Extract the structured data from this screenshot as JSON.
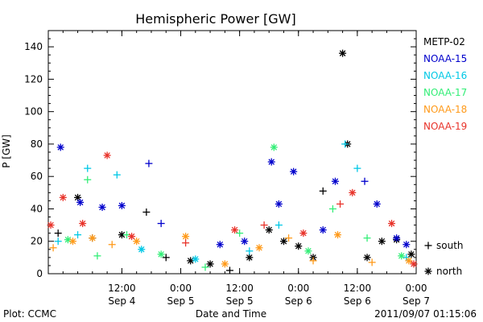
{
  "chart_data": {
    "type": "scatter",
    "title": "Hemispheric Power [GW]",
    "ylabel": "P [GW]",
    "xlabel": "Date and Time",
    "ylim": [
      0,
      150
    ],
    "yticks": [
      0,
      20,
      40,
      60,
      80,
      100,
      120,
      140
    ],
    "xlim": [
      "2011-09-03 21:00",
      "2011-09-07 00:00"
    ],
    "xticks": [
      {
        "time": "2011-09-04 12:00",
        "line1": "12:00",
        "line2": "Sep 4"
      },
      {
        "time": "2011-09-05 00:00",
        "line1": "0:00",
        "line2": "Sep 5"
      },
      {
        "time": "2011-09-05 12:00",
        "line1": "12:00",
        "line2": "Sep 5"
      },
      {
        "time": "2011-09-06 00:00",
        "line1": "0:00",
        "line2": "Sep 6"
      },
      {
        "time": "2011-09-06 12:00",
        "line1": "12:00",
        "line2": "Sep 6"
      },
      {
        "time": "2011-09-07 00:00",
        "line1": "0:00",
        "line2": "Sep 7"
      }
    ],
    "legend_position": "right",
    "marker_legend": [
      {
        "symbol": "+",
        "label": "south"
      },
      {
        "symbol": "*",
        "label": "north"
      }
    ],
    "series": [
      {
        "name": "METP-02",
        "color": "#000000",
        "points": [
          {
            "x": "2011-09-03 23:00",
            "y": 25,
            "m": "+"
          },
          {
            "x": "2011-09-04 03:00",
            "y": 47,
            "m": "*"
          },
          {
            "x": "2011-09-04 06:00",
            "y": 22,
            "m": "+"
          },
          {
            "x": "2011-09-04 12:00",
            "y": 24,
            "m": "*"
          },
          {
            "x": "2011-09-04 17:00",
            "y": 38,
            "m": "+"
          },
          {
            "x": "2011-09-04 21:00",
            "y": 10,
            "m": "+"
          },
          {
            "x": "2011-09-05 02:00",
            "y": 8,
            "m": "*"
          },
          {
            "x": "2011-09-05 06:00",
            "y": 6,
            "m": "*"
          },
          {
            "x": "2011-09-05 10:00",
            "y": 2,
            "m": "+"
          },
          {
            "x": "2011-09-05 14:00",
            "y": 10,
            "m": "*"
          },
          {
            "x": "2011-09-05 18:00",
            "y": 27,
            "m": "*"
          },
          {
            "x": "2011-09-05 21:00",
            "y": 20,
            "m": "*"
          },
          {
            "x": "2011-09-06 00:00",
            "y": 17,
            "m": "*"
          },
          {
            "x": "2011-09-06 03:00",
            "y": 10,
            "m": "*"
          },
          {
            "x": "2011-09-06 05:00",
            "y": 51,
            "m": "+"
          },
          {
            "x": "2011-09-06 09:00",
            "y": 136,
            "m": "*"
          },
          {
            "x": "2011-09-06 10:00",
            "y": 80,
            "m": "*"
          },
          {
            "x": "2011-09-06 14:00",
            "y": 10,
            "m": "*"
          },
          {
            "x": "2011-09-06 17:00",
            "y": 20,
            "m": "*"
          },
          {
            "x": "2011-09-06 20:00",
            "y": 21,
            "m": "*"
          },
          {
            "x": "2011-09-06 23:00",
            "y": 12,
            "m": "*"
          }
        ]
      },
      {
        "name": "NOAA-15",
        "color": "#0000cc",
        "points": [
          {
            "x": "2011-09-03 23:30",
            "y": 78,
            "m": "*"
          },
          {
            "x": "2011-09-04 03:30",
            "y": 44,
            "m": "*"
          },
          {
            "x": "2011-09-04 08:00",
            "y": 41,
            "m": "*"
          },
          {
            "x": "2011-09-04 12:00",
            "y": 42,
            "m": "*"
          },
          {
            "x": "2011-09-04 17:30",
            "y": 68,
            "m": "+"
          },
          {
            "x": "2011-09-04 20:00",
            "y": 31,
            "m": "+"
          },
          {
            "x": "2011-09-05 08:00",
            "y": 18,
            "m": "*"
          },
          {
            "x": "2011-09-05 13:00",
            "y": 20,
            "m": "*"
          },
          {
            "x": "2011-09-05 18:30",
            "y": 69,
            "m": "*"
          },
          {
            "x": "2011-09-05 20:00",
            "y": 43,
            "m": "*"
          },
          {
            "x": "2011-09-05 23:00",
            "y": 63,
            "m": "*"
          },
          {
            "x": "2011-09-06 05:00",
            "y": 27,
            "m": "*"
          },
          {
            "x": "2011-09-06 07:30",
            "y": 57,
            "m": "*"
          },
          {
            "x": "2011-09-06 13:30",
            "y": 57,
            "m": "+"
          },
          {
            "x": "2011-09-06 16:00",
            "y": 43,
            "m": "*"
          },
          {
            "x": "2011-09-06 20:00",
            "y": 22,
            "m": "*"
          },
          {
            "x": "2011-09-06 22:00",
            "y": 18,
            "m": "*"
          }
        ]
      },
      {
        "name": "NOAA-16",
        "color": "#00c8e6",
        "points": [
          {
            "x": "2011-09-03 23:00",
            "y": 20,
            "m": "+"
          },
          {
            "x": "2011-09-04 03:00",
            "y": 24,
            "m": "+"
          },
          {
            "x": "2011-09-04 05:00",
            "y": 65,
            "m": "+"
          },
          {
            "x": "2011-09-04 11:00",
            "y": 61,
            "m": "+"
          },
          {
            "x": "2011-09-04 16:00",
            "y": 15,
            "m": "*"
          },
          {
            "x": "2011-09-05 03:00",
            "y": 9,
            "m": "*"
          },
          {
            "x": "2011-09-05 14:00",
            "y": 14,
            "m": "+"
          },
          {
            "x": "2011-09-05 20:00",
            "y": 30,
            "m": "+"
          },
          {
            "x": "2011-09-06 09:30",
            "y": 80,
            "m": "+"
          },
          {
            "x": "2011-09-06 12:00",
            "y": 65,
            "m": "+"
          },
          {
            "x": "2011-09-06 22:00",
            "y": 10,
            "m": "+"
          }
        ]
      },
      {
        "name": "NOAA-17",
        "color": "#33ee77",
        "points": [
          {
            "x": "2011-09-04 01:00",
            "y": 21,
            "m": "*"
          },
          {
            "x": "2011-09-04 05:00",
            "y": 58,
            "m": "+"
          },
          {
            "x": "2011-09-04 07:00",
            "y": 11,
            "m": "+"
          },
          {
            "x": "2011-09-04 13:00",
            "y": 24,
            "m": "+"
          },
          {
            "x": "2011-09-04 20:00",
            "y": 12,
            "m": "*"
          },
          {
            "x": "2011-09-05 05:00",
            "y": 4,
            "m": "+"
          },
          {
            "x": "2011-09-05 12:00",
            "y": 25,
            "m": "+"
          },
          {
            "x": "2011-09-05 19:00",
            "y": 78,
            "m": "*"
          },
          {
            "x": "2011-09-06 02:00",
            "y": 14,
            "m": "*"
          },
          {
            "x": "2011-09-06 07:00",
            "y": 40,
            "m": "+"
          },
          {
            "x": "2011-09-06 14:00",
            "y": 22,
            "m": "+"
          },
          {
            "x": "2011-09-06 21:00",
            "y": 11,
            "m": "*"
          }
        ]
      },
      {
        "name": "NOAA-18",
        "color": "#ff9a1a",
        "points": [
          {
            "x": "2011-09-03 22:00",
            "y": 16,
            "m": "+"
          },
          {
            "x": "2011-09-04 02:00",
            "y": 20,
            "m": "*"
          },
          {
            "x": "2011-09-04 06:00",
            "y": 22,
            "m": "*"
          },
          {
            "x": "2011-09-04 10:00",
            "y": 18,
            "m": "+"
          },
          {
            "x": "2011-09-04 15:00",
            "y": 20,
            "m": "*"
          },
          {
            "x": "2011-09-05 01:00",
            "y": 23,
            "m": "*"
          },
          {
            "x": "2011-09-05 09:00",
            "y": 6,
            "m": "*"
          },
          {
            "x": "2011-09-05 16:00",
            "y": 16,
            "m": "*"
          },
          {
            "x": "2011-09-05 22:00",
            "y": 22,
            "m": "+"
          },
          {
            "x": "2011-09-06 03:00",
            "y": 8,
            "m": "+"
          },
          {
            "x": "2011-09-06 08:00",
            "y": 24,
            "m": "*"
          },
          {
            "x": "2011-09-06 15:00",
            "y": 7,
            "m": "+"
          },
          {
            "x": "2011-09-06 22:30",
            "y": 8,
            "m": "*"
          }
        ]
      },
      {
        "name": "NOAA-19",
        "color": "#e8332a",
        "points": [
          {
            "x": "2011-09-03 21:30",
            "y": 30,
            "m": "*"
          },
          {
            "x": "2011-09-04 00:00",
            "y": 47,
            "m": "*"
          },
          {
            "x": "2011-09-04 04:00",
            "y": 31,
            "m": "*"
          },
          {
            "x": "2011-09-04 09:00",
            "y": 73,
            "m": "*"
          },
          {
            "x": "2011-09-04 14:00",
            "y": 23,
            "m": "*"
          },
          {
            "x": "2011-09-05 01:00",
            "y": 19,
            "m": "+"
          },
          {
            "x": "2011-09-05 11:00",
            "y": 27,
            "m": "*"
          },
          {
            "x": "2011-09-05 17:00",
            "y": 30,
            "m": "+"
          },
          {
            "x": "2011-09-06 01:00",
            "y": 25,
            "m": "*"
          },
          {
            "x": "2011-09-06 08:30",
            "y": 43,
            "m": "+"
          },
          {
            "x": "2011-09-06 11:00",
            "y": 50,
            "m": "*"
          },
          {
            "x": "2011-09-06 19:00",
            "y": 31,
            "m": "*"
          },
          {
            "x": "2011-09-06 23:30",
            "y": 6,
            "m": "*"
          }
        ]
      }
    ]
  },
  "footer": {
    "plot_credit": "Plot: CCMC",
    "timestamp": "2011/09/07 01:15:06"
  }
}
